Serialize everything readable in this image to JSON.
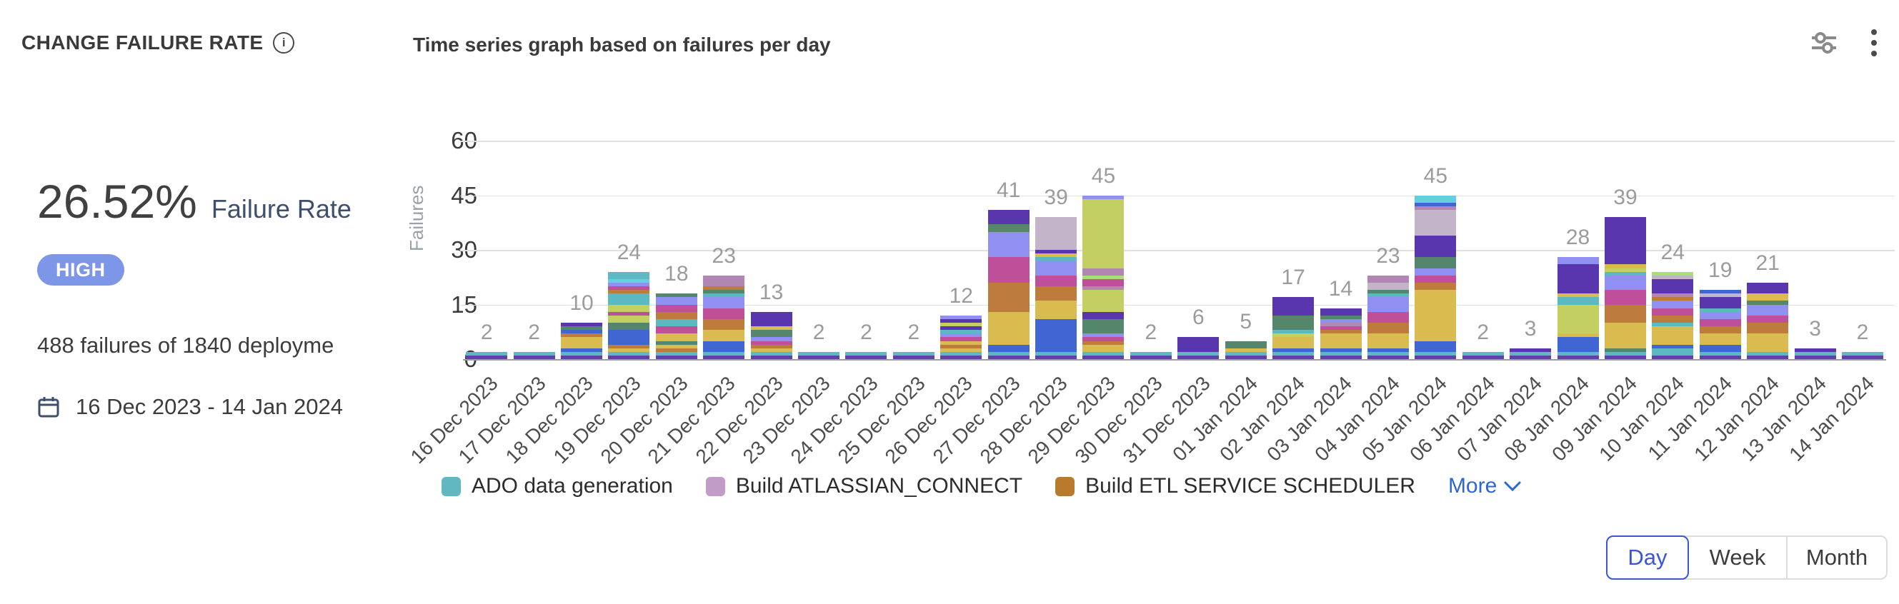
{
  "header": {
    "title": "CHANGE FAILURE RATE",
    "chart_title": "Time series graph based on failures per day"
  },
  "kpi": {
    "rate_value": "26.52%",
    "rate_label": "Failure Rate",
    "severity_badge": "HIGH",
    "severity_color": "#7e96e8",
    "summary": "488 failures of 1840 deployme",
    "date_range": "16 Dec 2023 - 14 Jan 2024"
  },
  "chart_data": {
    "type": "bar",
    "stacked": true,
    "title": "Time series graph based on failures per day",
    "ylabel": "Failures",
    "xlabel": "",
    "ylim": [
      0,
      60
    ],
    "yticks": [
      0,
      15,
      30,
      45,
      60
    ],
    "grid": true,
    "legend_position": "bottom",
    "categories": [
      "16 Dec 2023",
      "17 Dec 2023",
      "18 Dec 2023",
      "19 Dec 2023",
      "20 Dec 2023",
      "21 Dec 2023",
      "22 Dec 2023",
      "23 Dec 2023",
      "24 Dec 2023",
      "25 Dec 2023",
      "26 Dec 2023",
      "27 Dec 2023",
      "28 Dec 2023",
      "29 Dec 2023",
      "30 Dec 2023",
      "31 Dec 2023",
      "01 Jan 2024",
      "02 Jan 2024",
      "03 Jan 2024",
      "04 Jan 2024",
      "05 Jan 2024",
      "06 Jan 2024",
      "07 Jan 2024",
      "08 Jan 2024",
      "09 Jan 2024",
      "10 Jan 2024",
      "11 Jan 2024",
      "12 Jan 2024",
      "13 Jan 2024",
      "14 Jan 2024"
    ],
    "values": [
      2,
      2,
      10,
      24,
      18,
      23,
      13,
      2,
      2,
      2,
      12,
      41,
      39,
      45,
      2,
      6,
      5,
      17,
      14,
      23,
      45,
      2,
      3,
      28,
      39,
      24,
      19,
      21,
      3,
      2
    ],
    "total_failures": 488,
    "total_deployments": 1840,
    "palette": [
      "#5e42a6",
      "#5cb9c2",
      "#4066d4",
      "#d9bb4f",
      "#bd7c3c",
      "#c04f99",
      "#9090f2",
      "#53866a",
      "#5936ad",
      "#c3b4ca",
      "#c3cf60",
      "#b286b2",
      "#aade72",
      "#64cfe0"
    ],
    "segments": [
      [
        [
          0,
          1
        ],
        [
          1,
          1
        ]
      ],
      [
        [
          0,
          1
        ],
        [
          1,
          1
        ]
      ],
      [
        [
          0,
          1
        ],
        [
          1,
          1
        ],
        [
          2,
          1
        ],
        [
          3,
          3
        ],
        [
          4,
          1
        ],
        [
          2,
          1
        ],
        [
          7,
          1
        ],
        [
          8,
          1
        ]
      ],
      [
        [
          0,
          1
        ],
        [
          1,
          1
        ],
        [
          3,
          1
        ],
        [
          4,
          1
        ],
        [
          2,
          4
        ],
        [
          7,
          2
        ],
        [
          10,
          2
        ],
        [
          5,
          1
        ],
        [
          10,
          2
        ],
        [
          1,
          3
        ],
        [
          4,
          1
        ],
        [
          5,
          1
        ],
        [
          6,
          1
        ],
        [
          13,
          1
        ],
        [
          1,
          2
        ]
      ],
      [
        [
          0,
          1
        ],
        [
          1,
          1
        ],
        [
          4,
          1
        ],
        [
          3,
          1
        ],
        [
          7,
          1
        ],
        [
          3,
          2
        ],
        [
          5,
          2
        ],
        [
          1,
          2
        ],
        [
          4,
          2
        ],
        [
          5,
          2
        ],
        [
          6,
          2
        ],
        [
          7,
          1
        ]
      ],
      [
        [
          0,
          1
        ],
        [
          1,
          1
        ],
        [
          2,
          3
        ],
        [
          3,
          3
        ],
        [
          4,
          3
        ],
        [
          5,
          3
        ],
        [
          6,
          3
        ],
        [
          1,
          1
        ],
        [
          7,
          1
        ],
        [
          4,
          1
        ],
        [
          11,
          3
        ]
      ],
      [
        [
          0,
          1
        ],
        [
          1,
          1
        ],
        [
          3,
          1
        ],
        [
          4,
          1
        ],
        [
          5,
          1
        ],
        [
          6,
          1
        ],
        [
          7,
          2
        ],
        [
          3,
          1
        ],
        [
          8,
          4
        ]
      ],
      [
        [
          0,
          1
        ],
        [
          1,
          1
        ]
      ],
      [
        [
          0,
          1
        ],
        [
          1,
          1
        ]
      ],
      [
        [
          0,
          1
        ],
        [
          1,
          1
        ]
      ],
      [
        [
          0,
          1
        ],
        [
          1,
          1
        ],
        [
          3,
          1
        ],
        [
          4,
          1
        ],
        [
          3,
          1
        ],
        [
          5,
          1
        ],
        [
          6,
          1
        ],
        [
          1,
          1
        ],
        [
          8,
          1
        ],
        [
          10,
          1
        ],
        [
          8,
          1
        ],
        [
          6,
          1
        ]
      ],
      [
        [
          0,
          1
        ],
        [
          1,
          1
        ],
        [
          2,
          2
        ],
        [
          3,
          9
        ],
        [
          4,
          8
        ],
        [
          5,
          7
        ],
        [
          6,
          7
        ],
        [
          7,
          2
        ],
        [
          8,
          4
        ]
      ],
      [
        [
          0,
          1
        ],
        [
          1,
          1
        ],
        [
          2,
          9
        ],
        [
          3,
          5
        ],
        [
          4,
          4
        ],
        [
          5,
          3
        ],
        [
          6,
          4
        ],
        [
          1,
          1
        ],
        [
          3,
          1
        ],
        [
          8,
          1
        ],
        [
          9,
          9
        ]
      ],
      [
        [
          0,
          1
        ],
        [
          1,
          1
        ],
        [
          3,
          2
        ],
        [
          4,
          1
        ],
        [
          5,
          1
        ],
        [
          6,
          1
        ],
        [
          7,
          4
        ],
        [
          8,
          2
        ],
        [
          10,
          6
        ],
        [
          11,
          1
        ],
        [
          5,
          2
        ],
        [
          12,
          1
        ],
        [
          11,
          2
        ],
        [
          10,
          19
        ],
        [
          6,
          1
        ]
      ],
      [
        [
          0,
          1
        ],
        [
          1,
          1
        ]
      ],
      [
        [
          0,
          1
        ],
        [
          1,
          1
        ],
        [
          8,
          4
        ]
      ],
      [
        [
          0,
          1
        ],
        [
          1,
          1
        ],
        [
          3,
          1
        ],
        [
          7,
          2
        ]
      ],
      [
        [
          0,
          1
        ],
        [
          1,
          1
        ],
        [
          2,
          1
        ],
        [
          3,
          3
        ],
        [
          10,
          1
        ],
        [
          1,
          1
        ],
        [
          7,
          4
        ],
        [
          8,
          5
        ]
      ],
      [
        [
          0,
          1
        ],
        [
          1,
          1
        ],
        [
          2,
          1
        ],
        [
          3,
          4
        ],
        [
          4,
          1
        ],
        [
          5,
          1
        ],
        [
          11,
          1
        ],
        [
          6,
          1
        ],
        [
          7,
          1
        ],
        [
          8,
          2
        ]
      ],
      [
        [
          0,
          1
        ],
        [
          1,
          1
        ],
        [
          2,
          1
        ],
        [
          3,
          4
        ],
        [
          4,
          3
        ],
        [
          5,
          3
        ],
        [
          6,
          4
        ],
        [
          1,
          1
        ],
        [
          7,
          1
        ],
        [
          9,
          2
        ],
        [
          11,
          2
        ]
      ],
      [
        [
          0,
          1
        ],
        [
          1,
          1
        ],
        [
          2,
          3
        ],
        [
          3,
          14
        ],
        [
          4,
          2
        ],
        [
          5,
          2
        ],
        [
          6,
          2
        ],
        [
          7,
          3
        ],
        [
          8,
          6
        ],
        [
          9,
          7
        ],
        [
          11,
          1
        ],
        [
          2,
          1
        ],
        [
          13,
          2
        ]
      ],
      [
        [
          0,
          1
        ],
        [
          1,
          1
        ]
      ],
      [
        [
          0,
          1
        ],
        [
          1,
          1
        ],
        [
          8,
          1
        ]
      ],
      [
        [
          0,
          1
        ],
        [
          1,
          1
        ],
        [
          2,
          4
        ],
        [
          3,
          1
        ],
        [
          10,
          8
        ],
        [
          1,
          2
        ],
        [
          3,
          1
        ],
        [
          8,
          8
        ],
        [
          6,
          2
        ]
      ],
      [
        [
          0,
          1
        ],
        [
          1,
          1
        ],
        [
          7,
          1
        ],
        [
          3,
          7
        ],
        [
          4,
          5
        ],
        [
          5,
          4
        ],
        [
          6,
          4
        ],
        [
          1,
          1
        ],
        [
          10,
          1
        ],
        [
          3,
          1
        ],
        [
          8,
          13
        ]
      ],
      [
        [
          0,
          1
        ],
        [
          1,
          2
        ],
        [
          2,
          1
        ],
        [
          3,
          5
        ],
        [
          1,
          1
        ],
        [
          4,
          2
        ],
        [
          5,
          2
        ],
        [
          6,
          2
        ],
        [
          4,
          1
        ],
        [
          11,
          1
        ],
        [
          8,
          4
        ],
        [
          9,
          1
        ],
        [
          12,
          1
        ]
      ],
      [
        [
          0,
          1
        ],
        [
          1,
          1
        ],
        [
          2,
          2
        ],
        [
          3,
          3
        ],
        [
          4,
          2
        ],
        [
          5,
          2
        ],
        [
          6,
          2
        ],
        [
          1,
          1
        ],
        [
          8,
          3
        ],
        [
          9,
          1
        ],
        [
          2,
          1
        ]
      ],
      [
        [
          0,
          1
        ],
        [
          1,
          1
        ],
        [
          3,
          5
        ],
        [
          4,
          3
        ],
        [
          5,
          2
        ],
        [
          6,
          3
        ],
        [
          7,
          1
        ],
        [
          3,
          2
        ],
        [
          8,
          3
        ]
      ],
      [
        [
          0,
          1
        ],
        [
          1,
          1
        ],
        [
          8,
          1
        ]
      ],
      [
        [
          0,
          1
        ],
        [
          1,
          1
        ]
      ]
    ],
    "legend": [
      {
        "label": "ADO data generation",
        "color": "#62b8c0"
      },
      {
        "label": "Build ATLASSIAN_CONNECT",
        "color": "#c19cc6"
      },
      {
        "label": "Build ETL SERVICE SCHEDULER",
        "color": "#b87b2e"
      }
    ],
    "more_label": "More"
  },
  "controls": {
    "accent_color": "#3b56d8",
    "granularity": [
      {
        "label": "Day",
        "selected": true
      },
      {
        "label": "Week",
        "selected": false
      },
      {
        "label": "Month",
        "selected": false
      }
    ]
  }
}
